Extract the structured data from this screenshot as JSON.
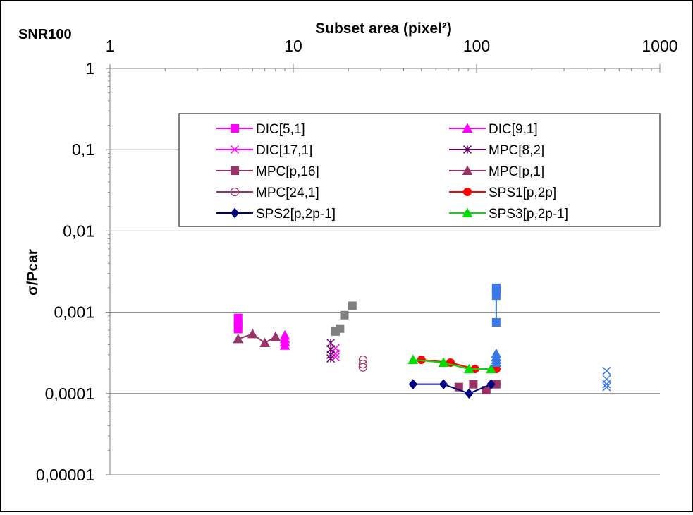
{
  "corner_label": "SNR100",
  "chart_data": {
    "type": "scatter",
    "title": "",
    "xlabel": "Subset area (pixel²)",
    "ylabel": "σ/Pcar",
    "xscale": "log",
    "yscale": "log",
    "xlim": [
      1,
      1000
    ],
    "ylim": [
      1e-05,
      1
    ],
    "x_tick_labels": [
      "1",
      "10",
      "100",
      "1000"
    ],
    "y_tick_labels": [
      "1",
      "0,1",
      "0,01",
      "0,001",
      "0,0001",
      "0,00001"
    ],
    "grid": "horizontal",
    "legend_placement": "upper-center",
    "series": [
      {
        "name": "DIC[5,1]",
        "color": "#FF00FF",
        "marker": "square",
        "line": false,
        "points": [
          [
            5,
            0.00085
          ],
          [
            5,
            0.00075
          ],
          [
            5,
            0.00068
          ],
          [
            5,
            0.00062
          ]
        ]
      },
      {
        "name": "DIC[9,1]",
        "color": "#FF00FF",
        "marker": "triangle",
        "line": false,
        "points": [
          [
            9,
            0.00052
          ],
          [
            9,
            0.00047
          ],
          [
            9,
            0.00043
          ],
          [
            9,
            0.00039
          ]
        ]
      },
      {
        "name": "DIC[17,1]",
        "color": "#FF00FF",
        "marker": "x",
        "line": false,
        "points": [
          [
            17,
            0.00036
          ],
          [
            17,
            0.00031
          ],
          [
            17,
            0.00028
          ]
        ]
      },
      {
        "name": "MPC[8,2]",
        "color": "#660066",
        "marker": "asterisk",
        "line": false,
        "points": [
          [
            16,
            0.00042
          ],
          [
            16,
            0.00035
          ],
          [
            16,
            0.0003
          ],
          [
            16,
            0.00027
          ]
        ]
      },
      {
        "name": "MPC[p,16]",
        "color": "#993366",
        "marker": "square",
        "line": false,
        "points": [
          [
            80,
            0.00012
          ],
          [
            96,
            0.00013
          ],
          [
            113,
            0.00011
          ],
          [
            128,
            0.00013
          ]
        ]
      },
      {
        "name": "MPC[p,1]",
        "color": "#993366",
        "marker": "triangle",
        "line": true,
        "points": [
          [
            5,
            0.00047
          ],
          [
            6,
            0.00054
          ],
          [
            7,
            0.00042
          ],
          [
            8,
            0.0005
          ]
        ]
      },
      {
        "name": "MPC[24,1]",
        "color": "#993366",
        "marker": "circle-open",
        "line": false,
        "points": [
          [
            24,
            0.00026
          ],
          [
            24,
            0.00023
          ],
          [
            24,
            0.00021
          ]
        ]
      },
      {
        "name": "SPS1[p,2p]",
        "color": "#FF0000",
        "marker": "circle",
        "line": true,
        "points": [
          [
            50,
            0.00026
          ],
          [
            72,
            0.00024
          ],
          [
            98,
            0.0002
          ],
          [
            128,
            0.0002
          ]
        ]
      },
      {
        "name": "SPS2[p,2p-1]",
        "color": "#000080",
        "marker": "diamond",
        "line": true,
        "points": [
          [
            45,
            0.00013
          ],
          [
            66,
            0.00013
          ],
          [
            91,
            0.0001
          ],
          [
            120,
            0.00013
          ]
        ]
      },
      {
        "name": "SPS3[p,2p-1]",
        "color": "#00DD00",
        "marker": "triangle",
        "line": true,
        "points": [
          [
            45,
            0.00026
          ],
          [
            66,
            0.00024
          ],
          [
            91,
            0.0002
          ],
          [
            120,
            0.0002
          ]
        ]
      },
      {
        "color": "#808080",
        "marker": "square",
        "line": false,
        "points": [
          [
            17,
            0.00058
          ],
          [
            18,
            0.00063
          ],
          [
            19,
            0.00092
          ],
          [
            21,
            0.0012
          ]
        ]
      },
      {
        "color": "#3B78E7",
        "marker": "square",
        "line": true,
        "points": [
          [
            128,
            0.002
          ],
          [
            128,
            0.0018
          ],
          [
            128,
            0.0016
          ],
          [
            128,
            0.00075
          ]
        ]
      },
      {
        "color": "#3B78E7",
        "marker": "triangle",
        "line": false,
        "points": [
          [
            128,
            0.00031
          ],
          [
            128,
            0.00028
          ],
          [
            128,
            0.00026
          ],
          [
            128,
            0.00024
          ]
        ]
      },
      {
        "color": "#3B78E7",
        "marker": "x",
        "line": false,
        "points": [
          [
            512,
            0.00019
          ],
          [
            512,
            0.00015
          ],
          [
            512,
            0.00013
          ],
          [
            512,
            0.00012
          ]
        ]
      }
    ]
  }
}
